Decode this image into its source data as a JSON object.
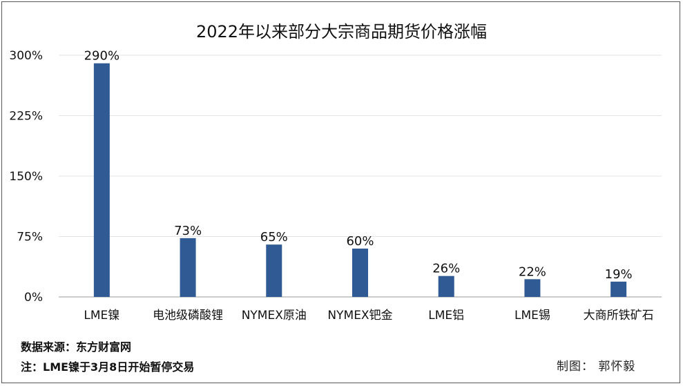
{
  "chart_data": {
    "type": "bar",
    "title": "2022年以来部分大宗商品期货价格涨幅",
    "categories": [
      "LME镍",
      "电池级磷酸锂",
      "NYMEX原油",
      "NYMEX钯金",
      "LME铝",
      "LME锡",
      "大商所铁矿石"
    ],
    "values": [
      290,
      73,
      65,
      60,
      26,
      22,
      19
    ],
    "value_labels": [
      "290%",
      "73%",
      "65%",
      "60%",
      "26%",
      "22%",
      "19%"
    ],
    "yticks": [
      0,
      75,
      150,
      225,
      300
    ],
    "ytick_labels": [
      "0%",
      "75%",
      "150%",
      "225%",
      "300%"
    ],
    "ylim": [
      0,
      300
    ],
    "grid": true,
    "bar_color": "#2f5a93",
    "xlabel": "",
    "ylabel": ""
  },
  "footer": {
    "source": "数据来源：东方财富网",
    "note": "注：LME镍于3月8日开始暂停交易",
    "credit": "制图：  郭怀毅"
  }
}
